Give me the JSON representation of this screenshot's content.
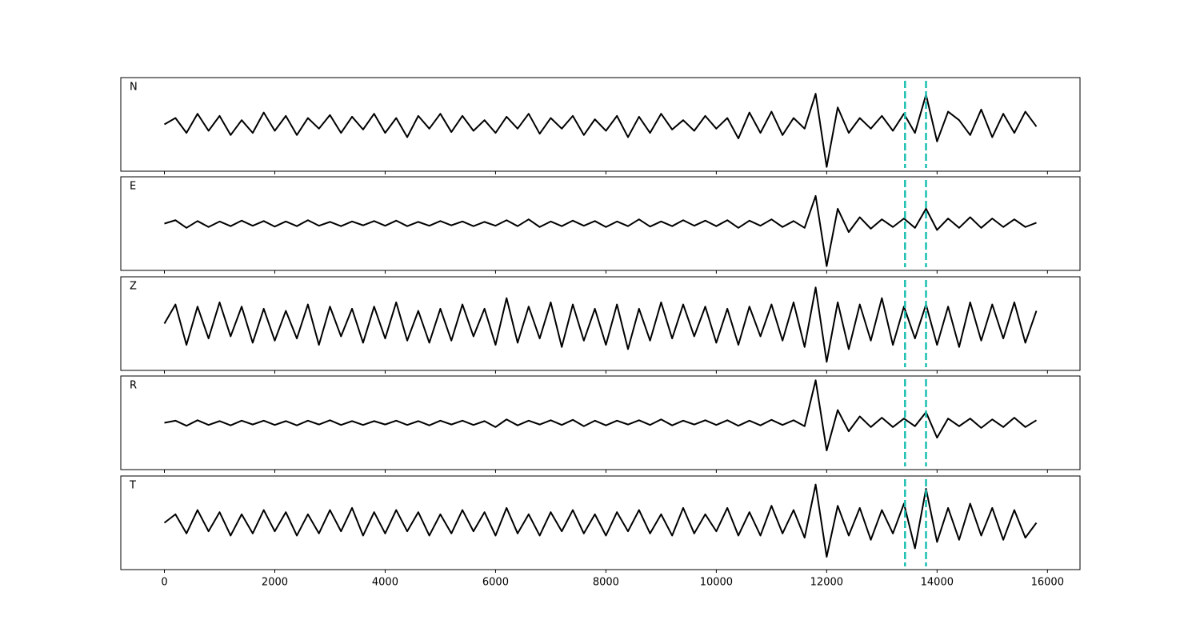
{
  "chart_data": {
    "type": "line",
    "layout": "stacked",
    "x": [
      0,
      200,
      400,
      600,
      800,
      1000,
      1200,
      1400,
      1600,
      1800,
      2000,
      2200,
      2400,
      2600,
      2800,
      3000,
      3200,
      3400,
      3600,
      3800,
      4000,
      4200,
      4400,
      4600,
      4800,
      5000,
      5200,
      5400,
      5600,
      5800,
      6000,
      6200,
      6400,
      6600,
      6800,
      7000,
      7200,
      7400,
      7600,
      7800,
      8000,
      8200,
      8400,
      8600,
      8800,
      9000,
      9200,
      9400,
      9600,
      9800,
      10000,
      10200,
      10400,
      10600,
      10800,
      11000,
      11200,
      11400,
      11600,
      11800,
      12000,
      12200,
      12400,
      12600,
      12800,
      13000,
      13200,
      13400,
      13600,
      13800,
      14000,
      14200,
      14400,
      14600,
      14800,
      15000,
      15200,
      15400,
      15600,
      15800
    ],
    "series": [
      {
        "name": "N",
        "color": "#000000",
        "values": [
          0,
          0.15,
          -0.2,
          0.25,
          -0.15,
          0.2,
          -0.25,
          0.1,
          -0.2,
          0.28,
          -0.15,
          0.2,
          -0.25,
          0.15,
          -0.1,
          0.22,
          -0.2,
          0.18,
          -0.12,
          0.25,
          -0.2,
          0.15,
          -0.3,
          0.2,
          -0.1,
          0.25,
          -0.18,
          0.2,
          -0.15,
          0.1,
          -0.2,
          0.18,
          -0.1,
          0.25,
          -0.22,
          0.15,
          -0.1,
          0.2,
          -0.25,
          0.12,
          -0.15,
          0.2,
          -0.3,
          0.18,
          -0.2,
          0.25,
          -0.12,
          0.1,
          -0.15,
          0.2,
          -0.1,
          0.15,
          -0.33,
          0.28,
          -0.2,
          0.3,
          -0.25,
          0.15,
          -0.1,
          0.72,
          -1.0,
          0.4,
          -0.2,
          0.15,
          -0.1,
          0.2,
          -0.15,
          0.25,
          -0.2,
          0.7,
          -0.4,
          0.3,
          0.1,
          -0.25,
          0.35,
          -0.3,
          0.25,
          -0.2,
          0.3,
          -0.05
        ]
      },
      {
        "name": "E",
        "color": "#000000",
        "values": [
          0,
          0.08,
          -0.1,
          0.06,
          -0.08,
          0.05,
          -0.06,
          0.07,
          -0.05,
          0.06,
          -0.07,
          0.05,
          -0.06,
          0.08,
          -0.05,
          0.04,
          -0.06,
          0.05,
          -0.04,
          0.06,
          -0.05,
          0.07,
          -0.06,
          0.04,
          -0.05,
          0.06,
          -0.04,
          0.05,
          -0.06,
          0.04,
          -0.05,
          0.08,
          -0.06,
          0.1,
          -0.08,
          0.05,
          -0.06,
          0.07,
          -0.05,
          0.06,
          -0.08,
          0.05,
          -0.06,
          0.1,
          -0.07,
          0.05,
          -0.06,
          0.08,
          -0.05,
          0.07,
          -0.06,
          0.08,
          -0.1,
          0.07,
          -0.05,
          0.1,
          -0.08,
          0.06,
          -0.1,
          0.65,
          -1.0,
          0.35,
          -0.2,
          0.15,
          -0.12,
          0.1,
          -0.08,
          0.12,
          -0.1,
          0.35,
          -0.15,
          0.12,
          -0.1,
          0.15,
          -0.1,
          0.12,
          -0.08,
          0.1,
          -0.08,
          0.02
        ]
      },
      {
        "name": "Z",
        "color": "#000000",
        "values": [
          0,
          0.45,
          -0.5,
          0.4,
          -0.35,
          0.5,
          -0.3,
          0.4,
          -0.45,
          0.35,
          -0.4,
          0.3,
          -0.35,
          0.45,
          -0.5,
          0.4,
          -0.3,
          0.35,
          -0.45,
          0.4,
          -0.35,
          0.5,
          -0.4,
          0.3,
          -0.45,
          0.35,
          -0.4,
          0.45,
          -0.3,
          0.35,
          -0.5,
          0.6,
          -0.45,
          0.4,
          -0.35,
          0.5,
          -0.55,
          0.45,
          -0.4,
          0.35,
          -0.5,
          0.45,
          -0.6,
          0.35,
          -0.4,
          0.5,
          -0.35,
          0.45,
          -0.3,
          0.4,
          -0.45,
          0.35,
          -0.5,
          0.4,
          -0.3,
          0.45,
          -0.4,
          0.5,
          -0.55,
          0.85,
          -0.9,
          0.5,
          -0.6,
          0.45,
          -0.4,
          0.6,
          -0.5,
          0.4,
          -0.35,
          0.45,
          -0.5,
          0.4,
          -0.55,
          0.5,
          -0.4,
          0.45,
          -0.35,
          0.5,
          -0.45,
          0.3
        ]
      },
      {
        "name": "R",
        "color": "#000000",
        "values": [
          0,
          0.05,
          -0.07,
          0.06,
          -0.05,
          0.04,
          -0.06,
          0.05,
          -0.04,
          0.05,
          -0.05,
          0.04,
          -0.06,
          0.05,
          -0.04,
          0.06,
          -0.05,
          0.04,
          -0.05,
          0.04,
          -0.04,
          0.05,
          -0.05,
          0.04,
          -0.06,
          0.05,
          -0.04,
          0.05,
          -0.05,
          0.04,
          -0.1,
          0.08,
          -0.06,
          0.05,
          -0.04,
          0.06,
          -0.05,
          0.07,
          -0.08,
          0.05,
          -0.06,
          0.05,
          -0.04,
          0.06,
          -0.05,
          0.08,
          -0.06,
          0.05,
          -0.04,
          0.06,
          -0.05,
          0.06,
          -0.07,
          0.05,
          -0.06,
          0.07,
          -0.05,
          0.06,
          -0.08,
          1.0,
          -0.65,
          0.3,
          -0.2,
          0.15,
          -0.1,
          0.12,
          -0.1,
          0.1,
          -0.08,
          0.25,
          -0.35,
          0.1,
          -0.08,
          0.1,
          -0.12,
          0.08,
          -0.1,
          0.12,
          -0.1,
          0.06
        ]
      },
      {
        "name": "T",
        "color": "#000000",
        "values": [
          0,
          0.2,
          -0.25,
          0.3,
          -0.2,
          0.25,
          -0.3,
          0.2,
          -0.25,
          0.3,
          -0.2,
          0.25,
          -0.3,
          0.2,
          -0.25,
          0.3,
          -0.2,
          0.35,
          -0.3,
          0.25,
          -0.25,
          0.3,
          -0.2,
          0.25,
          -0.3,
          0.2,
          -0.25,
          0.3,
          -0.2,
          0.25,
          -0.3,
          0.35,
          -0.25,
          0.2,
          -0.3,
          0.25,
          -0.2,
          0.3,
          -0.25,
          0.2,
          -0.3,
          0.25,
          -0.2,
          0.3,
          -0.25,
          0.2,
          -0.3,
          0.35,
          -0.25,
          0.2,
          -0.2,
          0.35,
          -0.3,
          0.25,
          -0.3,
          0.4,
          -0.25,
          0.3,
          -0.35,
          0.9,
          -0.8,
          0.4,
          -0.3,
          0.35,
          -0.4,
          0.3,
          -0.25,
          0.45,
          -0.6,
          0.8,
          -0.45,
          0.35,
          -0.4,
          0.45,
          -0.3,
          0.35,
          -0.4,
          0.3,
          -0.35,
          0.0
        ]
      }
    ],
    "xlim": [
      -790,
      16590
    ],
    "xticks": [
      0,
      2000,
      4000,
      6000,
      8000,
      10000,
      12000,
      14000,
      16000
    ],
    "ylim": [
      -1.1,
      1.1
    ],
    "vlines": [
      13420,
      13800
    ],
    "vline_color": "#1cbfb0",
    "vline_style": "dashed"
  }
}
